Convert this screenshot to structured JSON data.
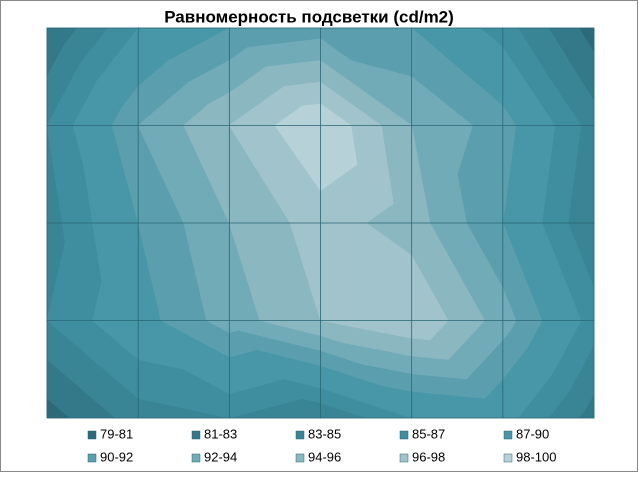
{
  "chart_data": {
    "type": "contour",
    "title": "Равномерность подсветки (cd/m2)",
    "z": [
      [
        81,
        87,
        90,
        91,
        90,
        86,
        80
      ],
      [
        85,
        92,
        96,
        100,
        94,
        91,
        84
      ],
      [
        84,
        90,
        94,
        97,
        95,
        90,
        83
      ],
      [
        85,
        89,
        93,
        96,
        98,
        93,
        86
      ],
      [
        80,
        84,
        85,
        83,
        87,
        88,
        82
      ]
    ],
    "levels": [
      79,
      81,
      83,
      85,
      87,
      90,
      92,
      94,
      96,
      98,
      100
    ],
    "bands": [
      {
        "label": "79-81",
        "color": "#2c6a7a"
      },
      {
        "label": "81-83",
        "color": "#33798a"
      },
      {
        "label": "83-85",
        "color": "#398595"
      },
      {
        "label": "85-87",
        "color": "#3e8e9f"
      },
      {
        "label": "87-90",
        "color": "#4797a8"
      },
      {
        "label": "90-92",
        "color": "#5b9fae"
      },
      {
        "label": "92-94",
        "color": "#72abb8"
      },
      {
        "label": "94-96",
        "color": "#8bb7c1"
      },
      {
        "label": "96-98",
        "color": "#a1c4cc"
      },
      {
        "label": "98-100",
        "color": "#b6d1d8"
      }
    ]
  }
}
